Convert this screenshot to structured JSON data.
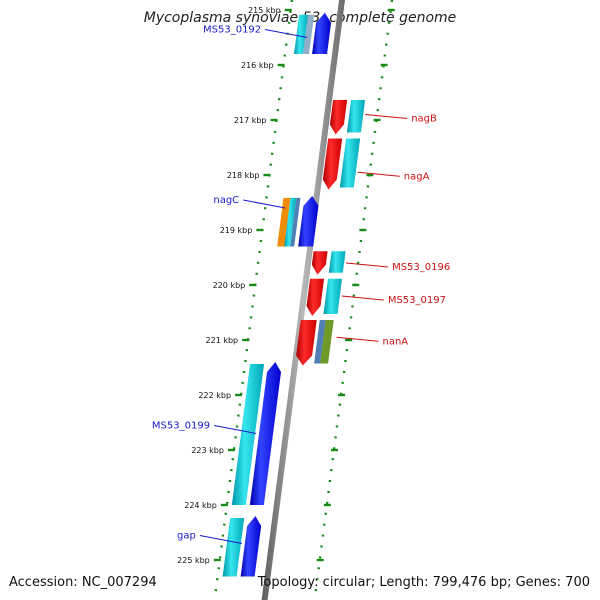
{
  "title": "Mycoplasma synoviae 53, complete genome",
  "footer": {
    "accession": "Accession: NC_007294",
    "topology": "Topology: circular; Length: 799,476 bp; Genes: 700"
  },
  "map": {
    "ticks": [
      {
        "label": "215 kbp",
        "kbp": 215
      },
      {
        "label": "216 kbp",
        "kbp": 216
      },
      {
        "label": "217 kbp",
        "kbp": 217
      },
      {
        "label": "218 kbp",
        "kbp": 218
      },
      {
        "label": "219 kbp",
        "kbp": 219
      },
      {
        "label": "220 kbp",
        "kbp": 220
      },
      {
        "label": "221 kbp",
        "kbp": 221
      },
      {
        "label": "222 kbp",
        "kbp": 222
      },
      {
        "label": "223 kbp",
        "kbp": 223
      },
      {
        "label": "224 kbp",
        "kbp": 224
      },
      {
        "label": "225 kbp",
        "kbp": 225
      }
    ],
    "genes_reverse": [
      {
        "name": "MS53_0192",
        "start_kbp": 215.05,
        "end_kbp": 215.8
      },
      {
        "name": "nagC",
        "start_kbp": 218.38,
        "end_kbp": 219.3
      },
      {
        "name": "MS53_0199",
        "start_kbp": 221.4,
        "end_kbp": 224.0
      },
      {
        "name": "gap",
        "start_kbp": 224.2,
        "end_kbp": 225.3
      }
    ],
    "genes_forward": [
      {
        "name": "nagB",
        "start_kbp": 216.6,
        "end_kbp": 217.3
      },
      {
        "name": "nagA",
        "start_kbp": 217.3,
        "end_kbp": 218.3
      },
      {
        "name": "MS53_0196",
        "start_kbp": 219.35,
        "end_kbp": 219.85
      },
      {
        "name": "MS53_0197",
        "start_kbp": 219.85,
        "end_kbp": 220.6
      },
      {
        "name": "nanA",
        "start_kbp": 220.6,
        "end_kbp": 221.5
      }
    ],
    "labels": [
      {
        "text": "MS53_0192",
        "strand": "reverse",
        "kbp": 215.5
      },
      {
        "text": "nagC",
        "strand": "reverse",
        "kbp": 218.6
      },
      {
        "text": "MS53_0199",
        "strand": "reverse",
        "kbp": 222.7
      },
      {
        "text": "gap",
        "strand": "reverse",
        "kbp": 224.7
      },
      {
        "text": "nagB",
        "strand": "forward",
        "kbp": 216.9
      },
      {
        "text": "nagA",
        "strand": "forward",
        "kbp": 217.95
      },
      {
        "text": "MS53_0196",
        "strand": "forward",
        "kbp": 219.6
      },
      {
        "text": "MS53_0197",
        "strand": "forward",
        "kbp": 220.2
      },
      {
        "text": "nanA",
        "strand": "forward",
        "kbp": 220.95
      }
    ],
    "colors": {
      "backbone": "#8c8c8c",
      "dots": "#1a8a1a",
      "cds": "#0000ee",
      "gene": "#00b8c8",
      "reverse_label": "#1a1acc",
      "forward_cds": "#ee0000",
      "forward_label": "#cc1111",
      "cog_orange": "#f08c00",
      "cog_steel": "#4f7fb4",
      "cog_olive": "#6f9a2a"
    }
  }
}
